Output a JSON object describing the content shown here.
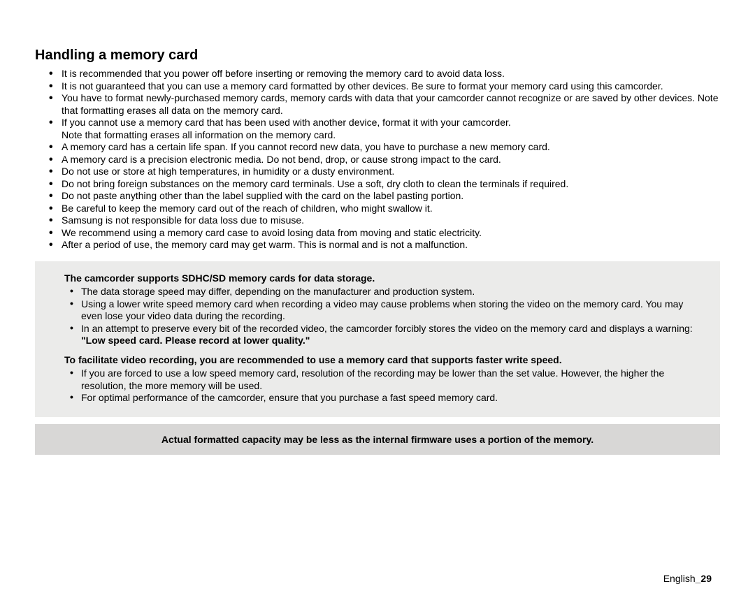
{
  "title": "Handling a memory card",
  "bullets": [
    "It is recommended that you power off before inserting or removing the memory card to avoid data loss.",
    "It is not guaranteed that you can use a memory card formatted by other devices. Be sure to format your memory card using this camcorder.",
    "You have to format newly-purchased memory cards, memory cards with data that your camcorder cannot recognize or are saved by other devices. Note that formatting erases all data on the memory card.",
    "If you cannot use a memory card that has been used with another device, format it with your camcorder.\nNote that formatting erases all information on the memory card.",
    "A memory card has a certain life span. If you cannot record new data, you have to purchase a new memory card.",
    "A memory card is a precision electronic media. Do not bend, drop, or cause strong impact to the card.",
    "Do not use or store at high temperatures, in humidity or a dusty environment.",
    "Do not bring foreign substances on the memory card terminals. Use a soft, dry cloth to clean the terminals if required.",
    "Do not paste anything other than the label supplied with the card on the label pasting portion.",
    "Be careful to keep the memory card out of the reach of children, who might swallow it.",
    "Samsung is not responsible for data loss due to misuse.",
    "We recommend using a memory card case to avoid losing data from moving and static electricity.",
    "After a period of use, the memory card may get warm. This is normal and is not a malfunction."
  ],
  "box1": {
    "head1": "The camcorder supports SDHC/SD memory cards for data storage.",
    "list1": [
      "The data storage speed may differ, depending on the manufacturer and production system.",
      "Using a lower write speed memory card when recording a video may cause problems when storing the video on the memory card. You may even lose your video data during the recording.",
      {
        "pre": "In an attempt to preserve every bit of the recorded video, the camcorder forcibly stores the video on the memory card and displays a warning: ",
        "bold": "\"Low speed card. Please record at lower quality.\""
      }
    ],
    "head2": "To facilitate video recording, you are recommended to use a memory card that supports faster write speed.",
    "list2": [
      "If you are forced to use a low speed memory card, resolution of the recording may be lower than the set value. However, the higher the resolution, the more memory will be used.",
      "For optimal performance of the camcorder, ensure that you purchase a fast speed memory card."
    ]
  },
  "box2": "Actual formatted capacity may be less as the internal firmware uses a portion of the memory.",
  "footer_lang": "English",
  "footer_sep": "_",
  "footer_page": "29"
}
